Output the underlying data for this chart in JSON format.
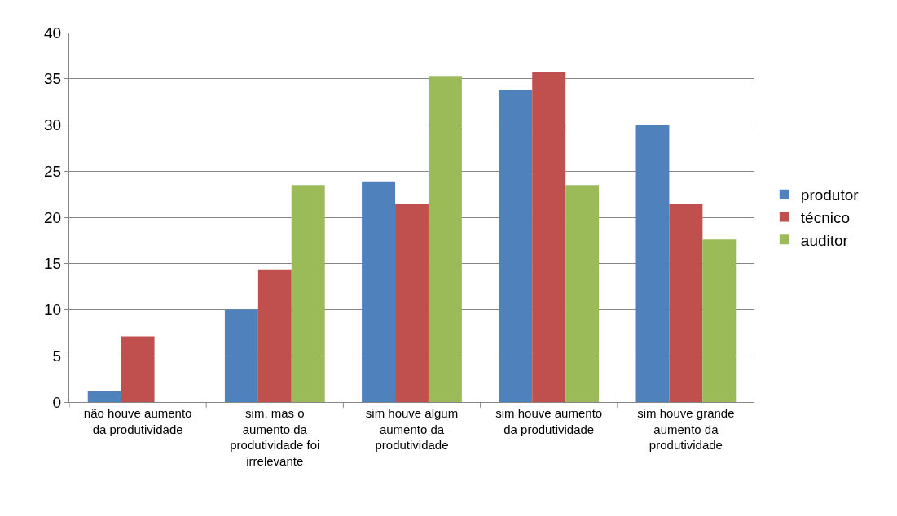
{
  "chart_data": {
    "type": "bar",
    "categories": [
      "não houve aumento da produtividade",
      "sim, mas o aumento da produtividade foi irrelevante",
      "sim houve algum aumento da produtividade",
      "sim houve aumento da produtividade",
      "sim houve grande aumento da produtividade"
    ],
    "series": [
      {
        "name": "produtor",
        "color": "#4f81bd",
        "values": [
          1.2,
          10,
          23.8,
          33.8,
          30
        ]
      },
      {
        "name": "técnico",
        "color": "#c0504d",
        "values": [
          7.1,
          14.3,
          21.4,
          35.7,
          21.4
        ]
      },
      {
        "name": "auditor",
        "color": "#9bbb59",
        "values": [
          0,
          23.5,
          35.3,
          23.5,
          17.6
        ]
      }
    ],
    "ylim": [
      0,
      40
    ],
    "yticks": [
      0,
      5,
      10,
      15,
      20,
      25,
      30,
      35,
      40
    ],
    "grid": "y",
    "legend": "right"
  }
}
